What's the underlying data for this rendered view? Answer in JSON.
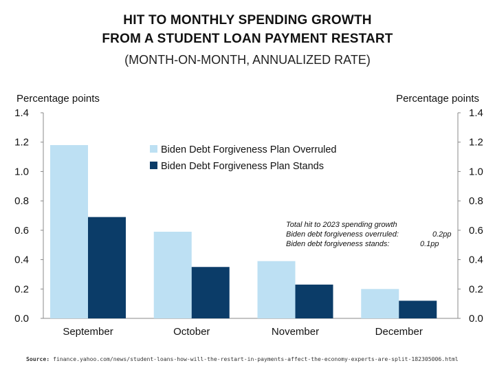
{
  "header": {
    "title_line1": "HIT TO MONTHLY SPENDING GROWTH",
    "title_line2": "FROM A STUDENT LOAN PAYMENT RESTART",
    "subtitle": "(MONTH-ON-MONTH, ANNUALIZED RATE)"
  },
  "annotation": {
    "line1": "Total hit to 2023 spending growth",
    "line2_label": "Biden debt forgiveness overruled:",
    "line2_value": "0.2pp",
    "line3_label": "Biden debt forgiveness stands:",
    "line3_value": "0.1pp"
  },
  "footer": {
    "source_label": "Source:",
    "source_text": "finance.yahoo.com/news/student-loans-how-will-the-restart-in-payments-affect-the-economy-experts-are-split-182305006.html"
  },
  "chart_data": {
    "type": "bar",
    "categories": [
      "September",
      "October",
      "November",
      "December"
    ],
    "series": [
      {
        "name": "Biden Debt Forgiveness Plan Overruled",
        "values": [
          1.18,
          0.59,
          0.39,
          0.2
        ],
        "color": "#bde0f3"
      },
      {
        "name": "Biden Debt Forgiveness Plan Stands",
        "values": [
          0.69,
          0.35,
          0.23,
          0.12
        ],
        "color": "#0b3c68"
      }
    ],
    "ylabel_left": "Percentage points",
    "ylabel_right": "Percentage points",
    "ylim": [
      0,
      1.4
    ],
    "yticks": [
      "0.0",
      "0.2",
      "0.4",
      "0.6",
      "0.8",
      "1.0",
      "1.2",
      "1.4"
    ],
    "grid": false,
    "legend_position": "top-center",
    "axis_color": "#888888"
  }
}
